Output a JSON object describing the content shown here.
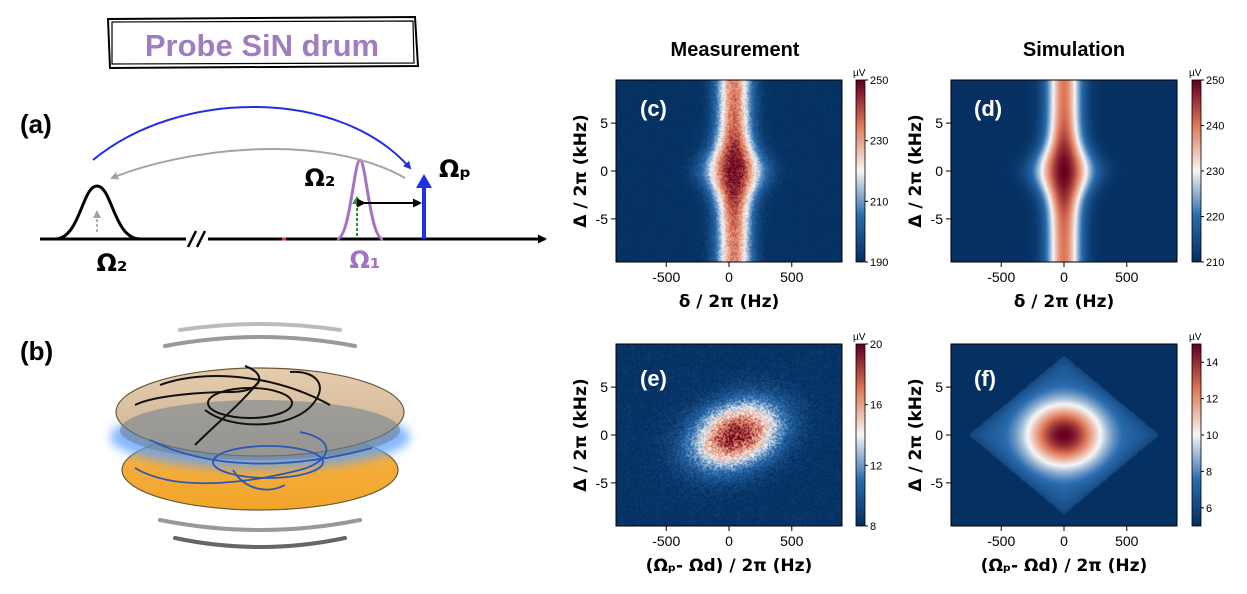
{
  "colors": {
    "purple": "#a472c2",
    "title_purple": "#a27cc0",
    "blue_arrow": "#1f2fe6",
    "gray_arrow": "#a4a4a4",
    "green_arrow": "#2f8f2f",
    "map_low": "#053061",
    "map_mid": "#f7f7f7",
    "map_high": "#67001f"
  },
  "left": {
    "title": "Probe SiN drum",
    "panel_a": "(a)",
    "panel_b": "(b)",
    "omega2_top": "Ω₂",
    "omega2_bottom": "Ω₂",
    "omega1": "Ω₁",
    "omega_p": "Ωₚ"
  },
  "columns": {
    "measurement": "Measurement",
    "simulation": "Simulation"
  },
  "chart_data": [
    {
      "id": "c",
      "panel_label": "(c)",
      "type": "heatmap",
      "xlabel": "δ / 2π (Hz)",
      "ylabel": "Δ / 2π (kHz)",
      "xticks": [
        -500,
        0,
        500
      ],
      "xtick_labels": [
        "-500",
        "0",
        "500"
      ],
      "yticks": [
        -5,
        0,
        5
      ],
      "ytick_labels": [
        "-5",
        "0",
        "5"
      ],
      "xlim": [
        -900,
        900
      ],
      "ylim": [
        -9.5,
        9.5
      ],
      "colorbar": {
        "unit": "µV",
        "range": [
          190,
          250
        ],
        "ticks": [
          190,
          210,
          230,
          250
        ],
        "tick_labels": [
          "190",
          "210",
          "230",
          "250"
        ]
      },
      "pattern": "band",
      "peak_x": 40,
      "noise": 0.15
    },
    {
      "id": "d",
      "panel_label": "(d)",
      "type": "heatmap",
      "xlabel": "δ / 2π (Hz)",
      "ylabel": "Δ / 2π (kHz)",
      "xticks": [
        -500,
        0,
        500
      ],
      "xtick_labels": [
        "-500",
        "0",
        "500"
      ],
      "yticks": [
        -5,
        0,
        5
      ],
      "ytick_labels": [
        "-5",
        "0",
        "5"
      ],
      "xlim": [
        -900,
        900
      ],
      "ylim": [
        -9.5,
        9.5
      ],
      "colorbar": {
        "unit": "µV",
        "range": [
          210,
          250
        ],
        "ticks": [
          210,
          220,
          230,
          240,
          250
        ],
        "tick_labels": [
          "210",
          "220",
          "230",
          "240",
          "250"
        ]
      },
      "pattern": "band",
      "peak_x": 0,
      "noise": 0
    },
    {
      "id": "e",
      "panel_label": "(e)",
      "type": "heatmap",
      "xlabel": "(Ωₚ- Ωd) / 2π (Hz)",
      "ylabel": "Δ / 2π (kHz)",
      "xticks": [
        -500,
        0,
        500
      ],
      "xtick_labels": [
        "-500",
        "0",
        "500"
      ],
      "yticks": [
        -5,
        0,
        5
      ],
      "ytick_labels": [
        "-5",
        "0",
        "5"
      ],
      "xlim": [
        -900,
        900
      ],
      "ylim": [
        -9.5,
        9.5
      ],
      "colorbar": {
        "unit": "µV",
        "range": [
          8,
          20
        ],
        "ticks": [
          8,
          12,
          16,
          20
        ],
        "tick_labels": [
          "8",
          "12",
          "16",
          "20"
        ]
      },
      "pattern": "tilted",
      "peak_x": 60,
      "noise": 0.3
    },
    {
      "id": "f",
      "panel_label": "(f)",
      "type": "heatmap",
      "xlabel": "(Ωₚ- Ωd) / 2π (Hz)",
      "ylabel": "Δ / 2π (kHz)",
      "xticks": [
        -500,
        0,
        500
      ],
      "xtick_labels": [
        "-500",
        "0",
        "500"
      ],
      "yticks": [
        -5,
        0,
        5
      ],
      "ytick_labels": [
        "-5",
        "0",
        "5"
      ],
      "xlim": [
        -900,
        900
      ],
      "ylim": [
        -9.5,
        9.5
      ],
      "colorbar": {
        "unit": "µV",
        "range": [
          5,
          15
        ],
        "ticks": [
          6,
          8,
          10,
          12,
          14
        ],
        "tick_labels": [
          "6",
          "8",
          "10",
          "12",
          "14"
        ]
      },
      "pattern": "diamond",
      "peak_x": 0,
      "noise": 0
    }
  ]
}
